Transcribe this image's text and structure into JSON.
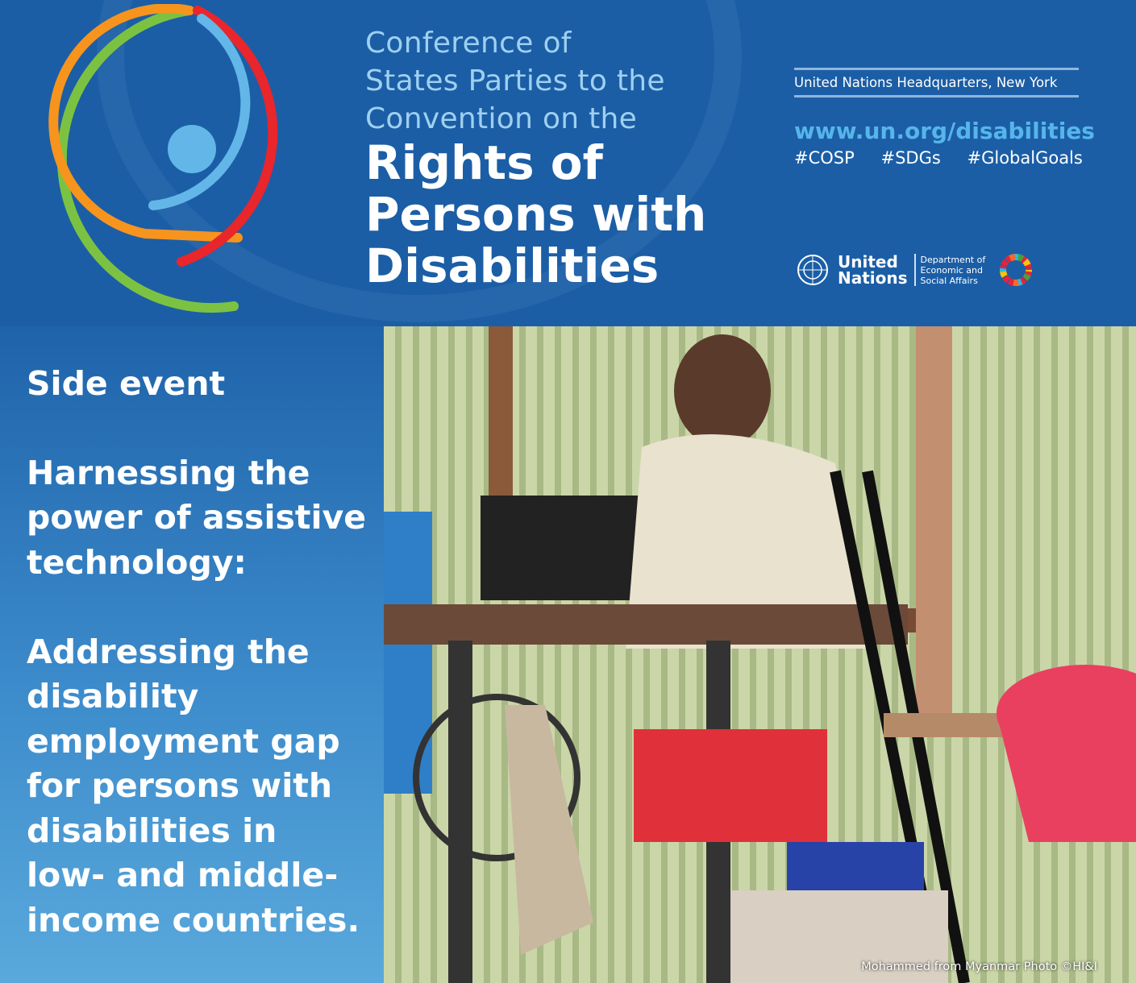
{
  "header": {
    "conference_lines": [
      "Conference of",
      "States Parties to the",
      "Convention on the"
    ],
    "title_lines": [
      "Rights of",
      "Persons with",
      "Disabilities"
    ],
    "location": "United Nations Headquarters, New York",
    "url": "www.un.org/disabilities",
    "hashtags": [
      "#COSP",
      "#SDGs",
      "#GlobalGoals"
    ],
    "un_logo": {
      "name_lines": [
        "United",
        "Nations"
      ],
      "department_lines": [
        "Department of",
        "Economic and",
        "Social Affairs"
      ]
    }
  },
  "side": {
    "label": "Side event",
    "subtitle_lines": [
      "Harnessing the",
      "power of assistive",
      "technology:"
    ],
    "topic_lines": [
      "Addressing the",
      "disability",
      "employment gap",
      "for persons with",
      "disabilities in",
      "low- and middle-",
      "income countries."
    ]
  },
  "photo": {
    "caption": "Mohammed from Myanmar  Photo ©HI&I"
  },
  "colors": {
    "header_blue": "#1b5ea6",
    "url_blue": "#56b5ea",
    "logo_green": "#7cc242",
    "logo_orange": "#f7941d",
    "logo_red": "#e8262b",
    "logo_lightblue": "#62b7e8"
  }
}
